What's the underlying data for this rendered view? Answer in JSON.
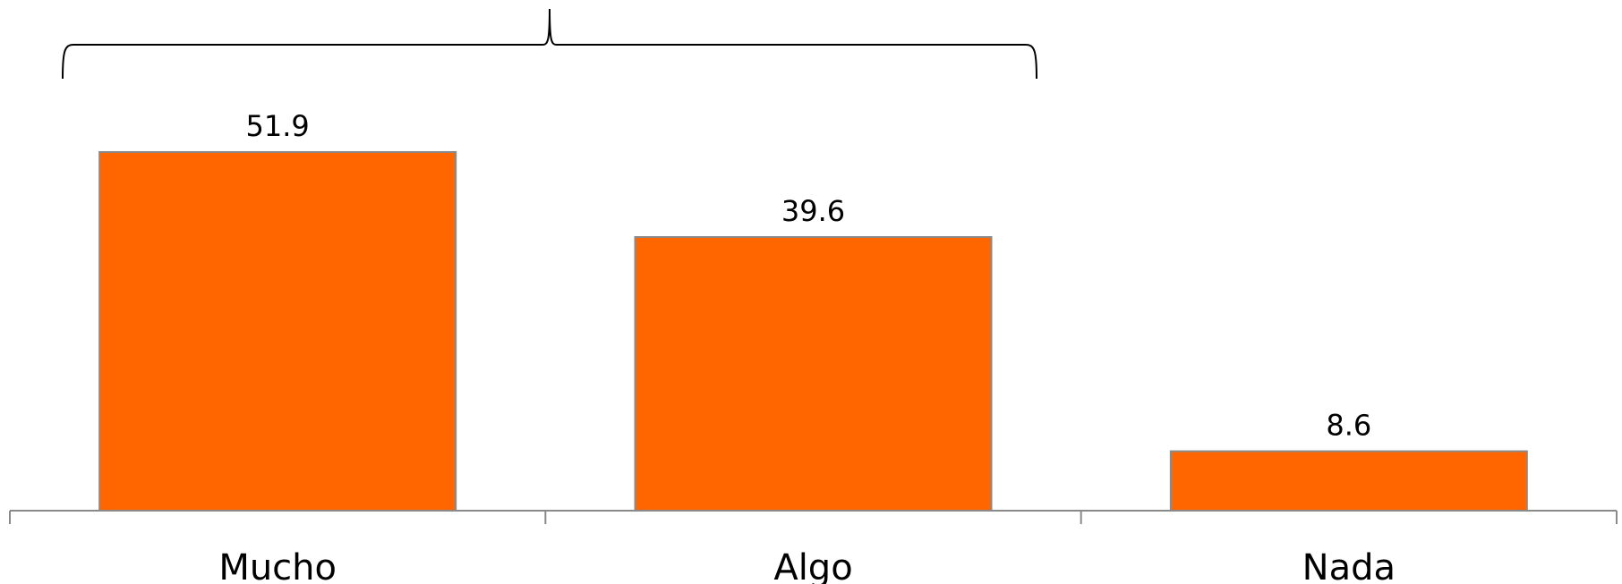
{
  "chart_data": {
    "type": "bar",
    "categories": [
      "Mucho",
      "Algo",
      "Nada"
    ],
    "values": [
      51.9,
      39.6,
      8.6
    ],
    "title": "",
    "xlabel": "",
    "ylabel": "",
    "ylim": [
      0,
      51.9
    ],
    "grid": false,
    "legend": "none",
    "bar_color": "#ff6600",
    "bar_edge_color": "#8a8a8a",
    "axis_color": "#8a8a8a",
    "annotation": "bracket spanning Mucho and Algo"
  }
}
